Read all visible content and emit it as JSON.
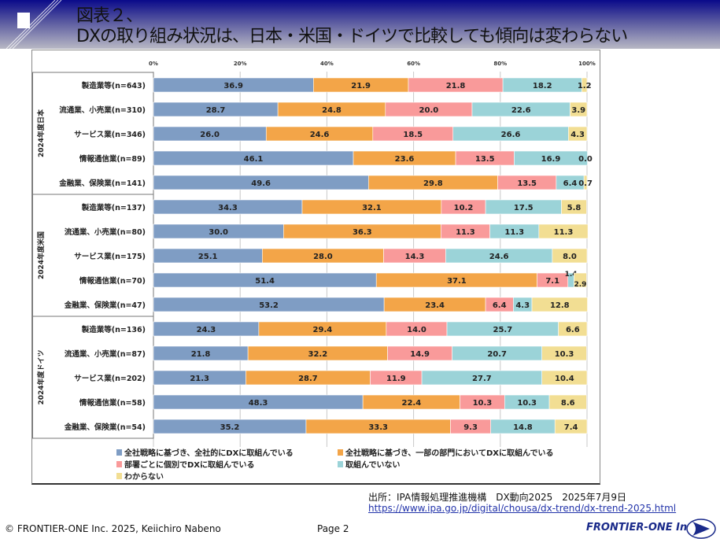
{
  "header": {
    "title_line1": "図表２、",
    "title_line2": "DXの取り組み状況は、日本・米国・ドイツで比較しても傾向は変わらない"
  },
  "chart_data": {
    "type": "bar",
    "orientation": "horizontal-stacked-100",
    "x_ticks": [
      "0%",
      "20%",
      "40%",
      "60%",
      "80%",
      "100%"
    ],
    "xlim": [
      0,
      100
    ],
    "grid": true,
    "legend_position": "bottom",
    "series_names": [
      "全社戦略に基づき、全社的にDXに取組んでいる",
      "全社戦略に基づき、一部の部門においてDXに取組んでいる",
      "部署ごとに個別でDXに取組んでいる",
      "取組んでいない",
      "わからない"
    ],
    "colors": [
      "#7f9dc4",
      "#f3a548",
      "#f99a9a",
      "#9bd3d8",
      "#f2de93"
    ],
    "groups": [
      {
        "label": "2024年度日本",
        "rows": [
          {
            "category": "製造業等(n=643)",
            "values": [
              36.9,
              21.9,
              21.8,
              18.2,
              1.2
            ]
          },
          {
            "category": "流通業、小売業(n=310)",
            "values": [
              28.7,
              24.8,
              20.0,
              22.6,
              3.9
            ]
          },
          {
            "category": "サービス業(n=346)",
            "values": [
              26.0,
              24.6,
              18.5,
              26.6,
              4.3
            ]
          },
          {
            "category": "情報通信業(n=89)",
            "values": [
              46.1,
              23.6,
              13.5,
              16.9,
              0.0
            ]
          },
          {
            "category": "金融業、保険業(n=141)",
            "values": [
              49.6,
              29.8,
              13.5,
              6.4,
              0.7
            ]
          }
        ]
      },
      {
        "label": "2024年度米国",
        "rows": [
          {
            "category": "製造業等(n=137)",
            "values": [
              34.3,
              32.1,
              10.2,
              17.5,
              5.8
            ]
          },
          {
            "category": "流通業、小売業(n=80)",
            "values": [
              30.0,
              36.3,
              11.3,
              11.3,
              11.3
            ]
          },
          {
            "category": "サービス業(n=175)",
            "values": [
              25.1,
              28.0,
              14.3,
              24.6,
              8.0
            ]
          },
          {
            "category": "情報通信業(n=70)",
            "values": [
              51.4,
              37.1,
              7.1,
              1.4,
              2.9
            ]
          },
          {
            "category": "金融業、保険業(n=47)",
            "values": [
              53.2,
              23.4,
              6.4,
              4.3,
              12.8
            ]
          }
        ]
      },
      {
        "label": "2024年度ドイツ",
        "rows": [
          {
            "category": "製造業等(n=136)",
            "values": [
              24.3,
              29.4,
              14.0,
              25.7,
              6.6
            ]
          },
          {
            "category": "流通業、小売業(n=87)",
            "values": [
              21.8,
              32.2,
              14.9,
              20.7,
              10.3
            ]
          },
          {
            "category": "サービス業(n=202)",
            "values": [
              21.3,
              28.7,
              11.9,
              27.7,
              10.4
            ]
          },
          {
            "category": "情報通信業(n=58)",
            "values": [
              48.3,
              22.4,
              10.3,
              10.3,
              8.6
            ]
          },
          {
            "category": "金融業、保険業(n=54)",
            "values": [
              35.2,
              33.3,
              9.3,
              14.8,
              7.4
            ]
          }
        ]
      }
    ]
  },
  "source": {
    "text": "出所：IPA情報処理推進機構　DX動向2025　2025年7月9日",
    "url": "https://www.ipa.go.jp/digital/chousa/dx-trend/dx-trend-2025.html"
  },
  "footer": {
    "copyright": "© FRONTIER-ONE Inc. 2025,  Keiichiro  Nabeno",
    "page": "Page 2",
    "logo_text": "FRONTIER-ONE Inc."
  }
}
